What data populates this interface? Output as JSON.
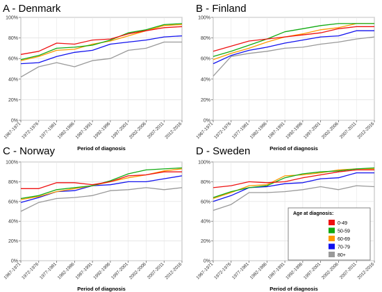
{
  "chart_data": {
    "x_axis_title": "Period of diagnosis",
    "categories": [
      "1967-1971",
      "1972-1976",
      "1977-1981",
      "1982-1986",
      "1987-1991",
      "1992-1996",
      "1997-2001",
      "2002-2006",
      "2007-2011",
      "2012-2016"
    ],
    "y_ticks": [
      "0%",
      "20%",
      "40%",
      "60%",
      "80%",
      "100%"
    ],
    "ylim": [
      0,
      100
    ],
    "legend": {
      "title": "Age at diagnosis:",
      "placement": "bottom-right of panel D",
      "entries": [
        {
          "label": "0-49",
          "color": "#ee1111"
        },
        {
          "label": "50-59",
          "color": "#11aa11"
        },
        {
          "label": "60-69",
          "color": "#ff9900"
        },
        {
          "label": "70-79",
          "color": "#1111ee"
        },
        {
          "label": "80+",
          "color": "#999999"
        }
      ]
    },
    "panels": [
      {
        "title": "A - Denmark",
        "type": "line",
        "series": [
          {
            "name": "0-49",
            "values": [
              64,
              67,
              75,
              74,
              78,
              79,
              84,
              87,
              90,
              91
            ]
          },
          {
            "name": "50-59",
            "values": [
              59,
              63,
              70,
              71,
              73,
              78,
              85,
              88,
              93,
              94
            ]
          },
          {
            "name": "60-69",
            "values": [
              58,
              62,
              68,
              69,
              74,
              77,
              82,
              87,
              92,
              93
            ]
          },
          {
            "name": "70-79",
            "values": [
              55,
              56,
              62,
              66,
              68,
              74,
              76,
              78,
              81,
              82
            ]
          },
          {
            "name": "80+",
            "values": [
              42,
              52,
              56,
              52,
              58,
              60,
              68,
              70,
              76,
              76
            ]
          }
        ]
      },
      {
        "title": "B - Finland",
        "type": "line",
        "series": [
          {
            "name": "0-49",
            "values": [
              67,
              72,
              77,
              79,
              81,
              83,
              85,
              89,
              91,
              91
            ]
          },
          {
            "name": "50-59",
            "values": [
              62,
              67,
              73,
              79,
              86,
              89,
              92,
              94,
              94,
              94
            ]
          },
          {
            "name": "60-69",
            "values": [
              59,
              65,
              70,
              76,
              81,
              84,
              88,
              90,
              94,
              94
            ]
          },
          {
            "name": "70-79",
            "values": [
              55,
              63,
              68,
              71,
              75,
              78,
              81,
              82,
              87,
              87
            ]
          },
          {
            "name": "80+",
            "values": [
              43,
              62,
              65,
              67,
              70,
              71,
              74,
              76,
              79,
              81
            ]
          }
        ]
      },
      {
        "title": "C - Norway",
        "type": "line",
        "series": [
          {
            "name": "0-49",
            "values": [
              73,
              73,
              79,
              79,
              77,
              80,
              86,
              87,
              90,
              90
            ]
          },
          {
            "name": "50-59",
            "values": [
              63,
              66,
              72,
              74,
              76,
              81,
              88,
              92,
              93,
              94
            ]
          },
          {
            "name": "60-69",
            "values": [
              62,
              65,
              70,
              73,
              76,
              80,
              84,
              87,
              91,
              93
            ]
          },
          {
            "name": "70-79",
            "values": [
              59,
              64,
              70,
              71,
              76,
              77,
              80,
              80,
              83,
              86
            ]
          },
          {
            "name": "80+",
            "values": [
              50,
              59,
              63,
              64,
              66,
              71,
              72,
              74,
              72,
              74
            ]
          }
        ]
      },
      {
        "title": "D - Sweden",
        "type": "line",
        "series": [
          {
            "name": "0-49",
            "values": [
              74,
              76,
              80,
              79,
              80,
              84,
              87,
              90,
              92,
              92
            ]
          },
          {
            "name": "50-59",
            "values": [
              64,
              70,
              74,
              76,
              84,
              88,
              90,
              91,
              93,
              94
            ]
          },
          {
            "name": "60-69",
            "values": [
              63,
              69,
              76,
              77,
              86,
              87,
              89,
              92,
              93,
              93
            ]
          },
          {
            "name": "70-79",
            "values": [
              60,
              66,
              74,
              75,
              78,
              79,
              83,
              84,
              89,
              89
            ]
          },
          {
            "name": "80+",
            "values": [
              51,
              57,
              69,
              69,
              70,
              72,
              75,
              72,
              76,
              75
            ]
          }
        ]
      }
    ]
  }
}
